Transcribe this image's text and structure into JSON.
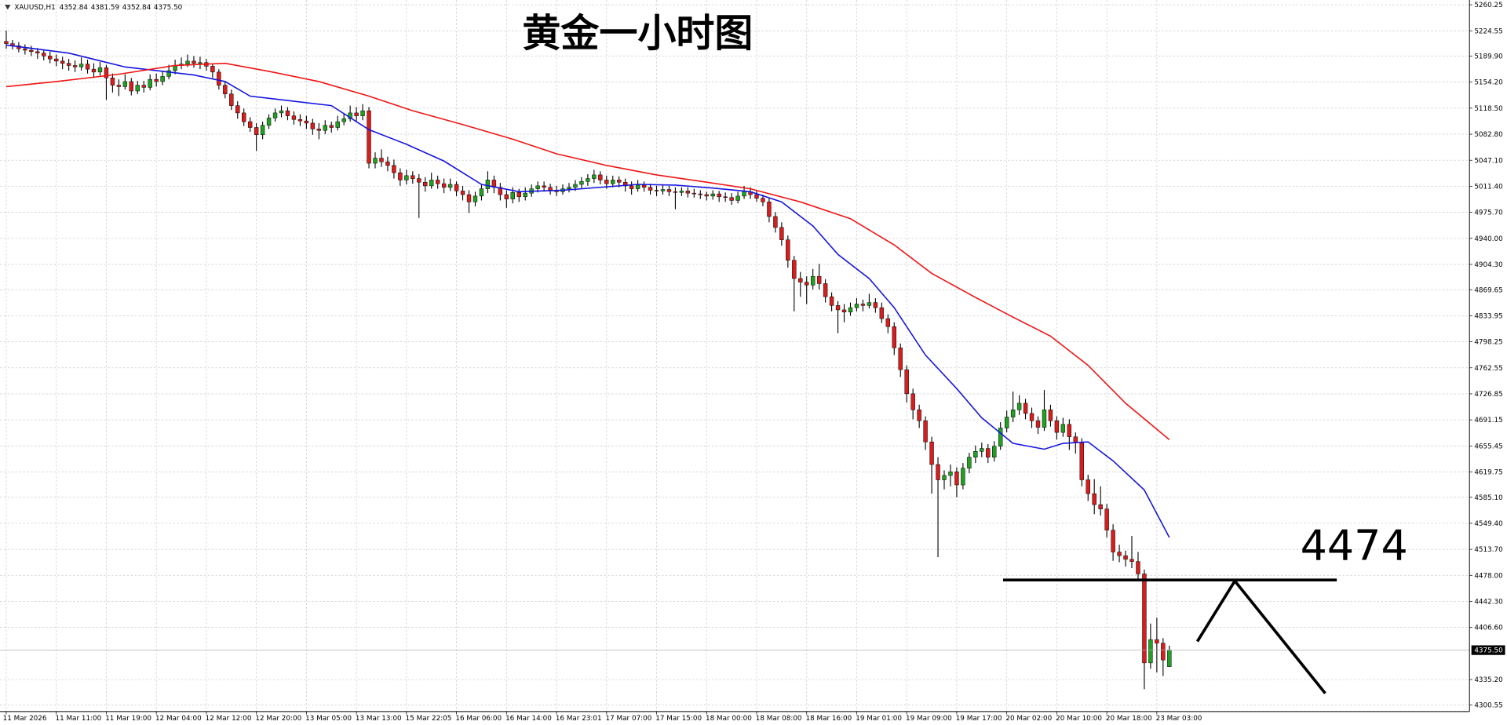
{
  "chart_data": {
    "type": "candlestick",
    "title": "黄金一小时图",
    "symbol": "XAUUSD,H1",
    "header_labels": [
      "4352.84",
      "4381.59",
      "4352.84",
      "4375.50"
    ],
    "up_color": "#22a022",
    "down_color": "#d61e1e",
    "wick_color": "#000000",
    "grid": true,
    "xlim": [
      -1,
      234
    ],
    "ylim": [
      4291.3,
      5266.8
    ],
    "xticks": [
      {
        "value": 0,
        "label": "11 Mar 2026"
      },
      {
        "value": 8,
        "label": "11 Mar 11:00"
      },
      {
        "value": 16,
        "label": "11 Mar 19:00"
      },
      {
        "value": 24,
        "label": "12 Mar 04:00"
      },
      {
        "value": 32,
        "label": "12 Mar 12:00"
      },
      {
        "value": 40,
        "label": "12 Mar 20:00"
      },
      {
        "value": 48,
        "label": "13 Mar 05:00"
      },
      {
        "value": 56,
        "label": "13 Mar 13:00"
      },
      {
        "value": 64,
        "label": "15 Mar 22:05"
      },
      {
        "value": 72,
        "label": "16 Mar 06:00"
      },
      {
        "value": 80,
        "label": "16 Mar 14:00"
      },
      {
        "value": 88,
        "label": "16 Mar 23:01"
      },
      {
        "value": 96,
        "label": "17 Mar 07:00"
      },
      {
        "value": 104,
        "label": "17 Mar 15:00"
      },
      {
        "value": 112,
        "label": "18 Mar 00:00"
      },
      {
        "value": 120,
        "label": "18 Mar 08:00"
      },
      {
        "value": 128,
        "label": "18 Mar 16:00"
      },
      {
        "value": 136,
        "label": "19 Mar 01:00"
      },
      {
        "value": 144,
        "label": "19 Mar 09:00"
      },
      {
        "value": 152,
        "label": "19 Mar 17:00"
      },
      {
        "value": 160,
        "label": "20 Mar 02:00"
      },
      {
        "value": 168,
        "label": "20 Mar 10:00"
      },
      {
        "value": 176,
        "label": "20 Mar 18:00"
      },
      {
        "value": 184,
        "label": "23 Mar 03:00"
      }
    ],
    "yticks": [
      5260.25,
      5224.55,
      {
        "value": 5189.9,
        "label": "5189.90"
      },
      {
        "value": 5154.2,
        "label": "5154.20"
      },
      {
        "value": 5118.5,
        "label": "5118.50"
      },
      {
        "value": 5082.8,
        "label": "5082.80"
      },
      {
        "value": 5047.1,
        "label": "5047.10"
      },
      {
        "value": 5011.4,
        "label": "5011.40"
      },
      {
        "value": 4975.7,
        "label": "4975.70"
      },
      {
        "value": 4940,
        "label": "4940.00"
      },
      {
        "value": 4904.3,
        "label": "4904.30"
      },
      4869.65,
      4833.95,
      4798.25,
      4762.55,
      4726.85,
      4691.15,
      4655.45,
      4619.75,
      {
        "value": 4585.1,
        "label": "4585.10"
      },
      {
        "value": 4549.4,
        "label": "4549.40"
      },
      {
        "value": 4513.7,
        "label": "4513.70"
      },
      {
        "value": 4478,
        "label": "4478.00"
      },
      {
        "value": 4442.3,
        "label": "4442.30"
      },
      {
        "value": 4406.6,
        "label": "4406.60"
      },
      {
        "value": 4335.2,
        "label": "4335.20"
      },
      4300.55
    ],
    "last_price": {
      "value": 4375.5,
      "label": "4375.50"
    },
    "annotations": [
      {
        "text": "4474"
      }
    ],
    "ohlc": [
      [
        5210,
        5225,
        5200,
        5207
      ],
      [
        5207,
        5212,
        5199,
        5204
      ],
      [
        5204,
        5209,
        5195,
        5200
      ],
      [
        5200,
        5206,
        5192,
        5198
      ],
      [
        5198,
        5204,
        5190,
        5196
      ],
      [
        5196,
        5201,
        5186,
        5194
      ],
      [
        5194,
        5199,
        5184,
        5190
      ],
      [
        5190,
        5196,
        5180,
        5186
      ],
      [
        5186,
        5192,
        5176,
        5183
      ],
      [
        5183,
        5189,
        5172,
        5180
      ],
      [
        5180,
        5186,
        5170,
        5177
      ],
      [
        5177,
        5184,
        5168,
        5175
      ],
      [
        5175,
        5188,
        5170,
        5179
      ],
      [
        5179,
        5185,
        5166,
        5172
      ],
      [
        5172,
        5180,
        5160,
        5168
      ],
      [
        5168,
        5182,
        5163,
        5174
      ],
      [
        5174,
        5178,
        5130,
        5160
      ],
      [
        5160,
        5166,
        5140,
        5150
      ],
      [
        5150,
        5158,
        5135,
        5148
      ],
      [
        5148,
        5165,
        5144,
        5155
      ],
      [
        5155,
        5160,
        5136,
        5142
      ],
      [
        5142,
        5156,
        5138,
        5150
      ],
      [
        5150,
        5156,
        5140,
        5147
      ],
      [
        5147,
        5165,
        5143,
        5158
      ],
      [
        5158,
        5166,
        5148,
        5155
      ],
      [
        5155,
        5170,
        5150,
        5162
      ],
      [
        5162,
        5178,
        5158,
        5170
      ],
      [
        5170,
        5185,
        5165,
        5177
      ],
      [
        5177,
        5188,
        5172,
        5179
      ],
      [
        5179,
        5192,
        5175,
        5183
      ],
      [
        5183,
        5190,
        5174,
        5180
      ],
      [
        5180,
        5189,
        5172,
        5181
      ],
      [
        5181,
        5186,
        5170,
        5176
      ],
      [
        5176,
        5180,
        5160,
        5168
      ],
      [
        5168,
        5172,
        5144,
        5150
      ],
      [
        5150,
        5156,
        5132,
        5138
      ],
      [
        5138,
        5144,
        5116,
        5122
      ],
      [
        5122,
        5128,
        5104,
        5112
      ],
      [
        5112,
        5118,
        5094,
        5100
      ],
      [
        5100,
        5106,
        5086,
        5092
      ],
      [
        5092,
        5098,
        5060,
        5082
      ],
      [
        5082,
        5100,
        5076,
        5095
      ],
      [
        5095,
        5110,
        5090,
        5105
      ],
      [
        5105,
        5118,
        5100,
        5112
      ],
      [
        5112,
        5122,
        5106,
        5115
      ],
      [
        5115,
        5120,
        5102,
        5108
      ],
      [
        5108,
        5114,
        5096,
        5103
      ],
      [
        5103,
        5110,
        5094,
        5101
      ],
      [
        5101,
        5108,
        5090,
        5098
      ],
      [
        5098,
        5104,
        5082,
        5090
      ],
      [
        5090,
        5098,
        5076,
        5088
      ],
      [
        5088,
        5102,
        5083,
        5095
      ],
      [
        5095,
        5100,
        5085,
        5092
      ],
      [
        5092,
        5108,
        5088,
        5100
      ],
      [
        5100,
        5112,
        5095,
        5104
      ],
      [
        5104,
        5122,
        5100,
        5112
      ],
      [
        5112,
        5120,
        5100,
        5108
      ],
      [
        5108,
        5124,
        5102,
        5115
      ],
      [
        5115,
        5120,
        5036,
        5043
      ],
      [
        5043,
        5058,
        5036,
        5050
      ],
      [
        5050,
        5062,
        5038,
        5045
      ],
      [
        5045,
        5052,
        5032,
        5040
      ],
      [
        5040,
        5048,
        5022,
        5030
      ],
      [
        5030,
        5036,
        5012,
        5020
      ],
      [
        5020,
        5034,
        5014,
        5026
      ],
      [
        5026,
        5032,
        5015,
        5022
      ],
      [
        5022,
        5028,
        4968,
        5017
      ],
      [
        5017,
        5024,
        5004,
        5012
      ],
      [
        5012,
        5030,
        5008,
        5020
      ],
      [
        5020,
        5026,
        5008,
        5015
      ],
      [
        5015,
        5022,
        5002,
        5010
      ],
      [
        5010,
        5022,
        5005,
        5014
      ],
      [
        5014,
        5018,
        4998,
        5005
      ],
      [
        5005,
        5012,
        4992,
        5000
      ],
      [
        5000,
        5006,
        4975,
        4990
      ],
      [
        4990,
        5004,
        4984,
        4998
      ],
      [
        4998,
        5014,
        4992,
        5008
      ],
      [
        5008,
        5032,
        5002,
        5020
      ],
      [
        5020,
        5026,
        5002,
        5010
      ],
      [
        5010,
        5016,
        4992,
        5000
      ],
      [
        5000,
        5006,
        4982,
        4994
      ],
      [
        4994,
        5010,
        4988,
        5003
      ],
      [
        5003,
        5008,
        4990,
        4997
      ],
      [
        4997,
        5010,
        4992,
        5002
      ],
      [
        5002,
        5014,
        4997,
        5008
      ],
      [
        5008,
        5018,
        5003,
        5012
      ],
      [
        5012,
        5018,
        5004,
        5010
      ],
      [
        5010,
        5015,
        5000,
        5006
      ],
      [
        5006,
        5012,
        4998,
        5004
      ],
      [
        5004,
        5014,
        5000,
        5008
      ],
      [
        5008,
        5016,
        5003,
        5010
      ],
      [
        5010,
        5020,
        5005,
        5014
      ],
      [
        5014,
        5024,
        5009,
        5018
      ],
      [
        5018,
        5028,
        5012,
        5022
      ],
      [
        5022,
        5034,
        5016,
        5027
      ],
      [
        5027,
        5032,
        5014,
        5020
      ],
      [
        5020,
        5026,
        5008,
        5015
      ],
      [
        5015,
        5026,
        5010,
        5020
      ],
      [
        5020,
        5025,
        5010,
        5017
      ],
      [
        5017,
        5022,
        5004,
        5012
      ],
      [
        5012,
        5018,
        5000,
        5008
      ],
      [
        5008,
        5020,
        5004,
        5013
      ],
      [
        5013,
        5018,
        5004,
        5010
      ],
      [
        5010,
        5015,
        5000,
        5006
      ],
      [
        5006,
        5012,
        4998,
        5005
      ],
      [
        5005,
        5014,
        5000,
        5007
      ],
      [
        5007,
        5012,
        4998,
        5004
      ],
      [
        5004,
        5010,
        4980,
        5003
      ],
      [
        5003,
        5010,
        4998,
        5005
      ],
      [
        5005,
        5010,
        4996,
        5002
      ],
      [
        5002,
        5008,
        4996,
        5001
      ],
      [
        5001,
        5006,
        4994,
        5000
      ],
      [
        5000,
        5004,
        4992,
        4998
      ],
      [
        4998,
        5006,
        4993,
        5001
      ],
      [
        5001,
        5005,
        4990,
        4997
      ],
      [
        4997,
        5003,
        4990,
        4996
      ],
      [
        4996,
        5002,
        4986,
        4992
      ],
      [
        4992,
        5004,
        4988,
        4998
      ],
      [
        4998,
        5012,
        4994,
        5004
      ],
      [
        5004,
        5010,
        4994,
        5000
      ],
      [
        5000,
        5006,
        4990,
        4995
      ],
      [
        4995,
        5000,
        4984,
        4990
      ],
      [
        4990,
        4996,
        4962,
        4970
      ],
      [
        4970,
        4976,
        4948,
        4955
      ],
      [
        4955,
        4962,
        4930,
        4938
      ],
      [
        4938,
        4944,
        4900,
        4910
      ],
      [
        4910,
        4916,
        4840,
        4885
      ],
      [
        4885,
        4894,
        4860,
        4880
      ],
      [
        4880,
        4888,
        4850,
        4876
      ],
      [
        4876,
        4898,
        4870,
        4888
      ],
      [
        4888,
        4905,
        4870,
        4878
      ],
      [
        4878,
        4884,
        4852,
        4860
      ],
      [
        4860,
        4866,
        4840,
        4848
      ],
      [
        4848,
        4854,
        4810,
        4842
      ],
      [
        4842,
        4850,
        4825,
        4839
      ],
      [
        4839,
        4852,
        4834,
        4845
      ],
      [
        4845,
        4858,
        4840,
        4850
      ],
      [
        4850,
        4856,
        4840,
        4848
      ],
      [
        4848,
        4864,
        4844,
        4852
      ],
      [
        4852,
        4858,
        4838,
        4845
      ],
      [
        4845,
        4852,
        4824,
        4830
      ],
      [
        4830,
        4836,
        4810,
        4819
      ],
      [
        4819,
        4825,
        4780,
        4790
      ],
      [
        4790,
        4796,
        4750,
        4760
      ],
      [
        4760,
        4766,
        4715,
        4727
      ],
      [
        4727,
        4734,
        4692,
        4705
      ],
      [
        4705,
        4712,
        4680,
        4690
      ],
      [
        4690,
        4696,
        4650,
        4661
      ],
      [
        4661,
        4668,
        4590,
        4630
      ],
      [
        4630,
        4640,
        4503,
        4609
      ],
      [
        4609,
        4622,
        4596,
        4615
      ],
      [
        4615,
        4630,
        4600,
        4620
      ],
      [
        4620,
        4626,
        4585,
        4602
      ],
      [
        4602,
        4632,
        4596,
        4625
      ],
      [
        4625,
        4646,
        4618,
        4640
      ],
      [
        4640,
        4656,
        4632,
        4648
      ],
      [
        4648,
        4660,
        4640,
        4652
      ],
      [
        4652,
        4658,
        4632,
        4640
      ],
      [
        4640,
        4662,
        4634,
        4655
      ],
      [
        4655,
        4688,
        4650,
        4680
      ],
      [
        4680,
        4704,
        4674,
        4695
      ],
      [
        4695,
        4730,
        4688,
        4705
      ],
      [
        4705,
        4725,
        4698,
        4714
      ],
      [
        4714,
        4720,
        4692,
        4700
      ],
      [
        4700,
        4708,
        4680,
        4690
      ],
      [
        4690,
        4696,
        4672,
        4681
      ],
      [
        4681,
        4732,
        4676,
        4705
      ],
      [
        4705,
        4712,
        4682,
        4690
      ],
      [
        4690,
        4696,
        4664,
        4674
      ],
      [
        4674,
        4694,
        4668,
        4685
      ],
      [
        4685,
        4692,
        4650,
        4668
      ],
      [
        4668,
        4674,
        4645,
        4660
      ],
      [
        4660,
        4666,
        4600,
        4609
      ],
      [
        4609,
        4616,
        4580,
        4590
      ],
      [
        4590,
        4610,
        4562,
        4575
      ],
      [
        4575,
        4600,
        4560,
        4569
      ],
      [
        4569,
        4576,
        4530,
        4540
      ],
      [
        4540,
        4548,
        4498,
        4510
      ],
      [
        4510,
        4520,
        4496,
        4505
      ],
      [
        4505,
        4512,
        4490,
        4500
      ],
      [
        4500,
        4532,
        4488,
        4497
      ],
      [
        4497,
        4510,
        4470,
        4480
      ],
      [
        4480,
        4486,
        4322,
        4358
      ],
      [
        4358,
        4412,
        4350,
        4390
      ],
      [
        4390,
        4420,
        4345,
        4385
      ],
      [
        4385,
        4392,
        4340,
        4362
      ],
      [
        4352.84,
        4381.59,
        4352.84,
        4375.5
      ]
    ],
    "lines": [
      {
        "color": "#1515e0",
        "x": [
          0,
          10,
          19,
          30,
          35,
          39,
          45,
          52,
          58,
          64,
          70,
          76,
          82,
          89,
          95,
          101,
          107,
          113,
          119,
          124,
          129,
          133,
          138,
          142,
          147,
          152,
          156,
          161,
          166,
          169,
          173,
          177,
          182,
          186
        ],
        "values": [
          5205,
          5194,
          5175,
          5164,
          5155,
          5135,
          5129,
          5122,
          5089,
          5069,
          5046,
          5014,
          5004,
          5006,
          5010,
          5014,
          5013,
          5009,
          5004,
          4990,
          4957,
          4918,
          4885,
          4845,
          4780,
          4734,
          4694,
          4659,
          4651,
          4659,
          4661,
          4635,
          4595,
          4530
        ]
      },
      {
        "color": "#f01414",
        "x": [
          0,
          8,
          18,
          27,
          35,
          42,
          50,
          58,
          65,
          73,
          81,
          88,
          96,
          104,
          112,
          119,
          127,
          135,
          142,
          148,
          155,
          161,
          167,
          173,
          179,
          186
        ],
        "values": [
          5148,
          5155,
          5165,
          5177,
          5180,
          5169,
          5155,
          5135,
          5115,
          5096,
          5076,
          5056,
          5040,
          5027,
          5017,
          5008,
          4990,
          4967,
          4931,
          4892,
          4859,
          4832,
          4806,
          4766,
          4714,
          4664
        ]
      }
    ]
  }
}
